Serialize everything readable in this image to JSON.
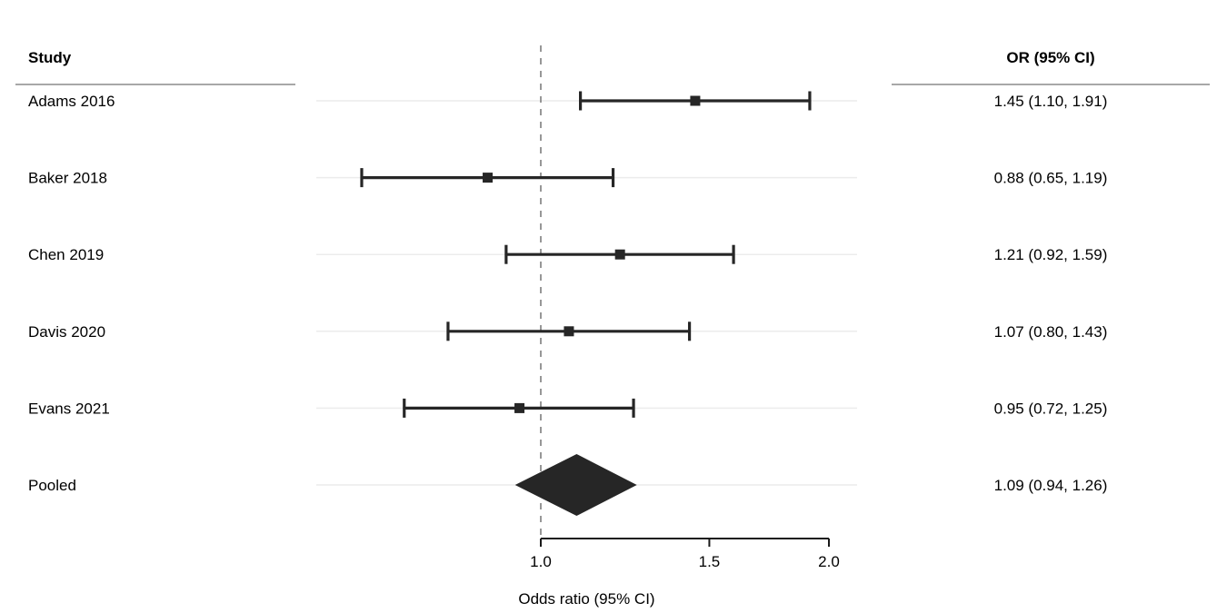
{
  "table": {
    "study_header": "Study",
    "or_header": "OR (95% CI)"
  },
  "chart_data": {
    "type": "forest",
    "x_scale": "log",
    "xlabel": "Odds ratio (95% CI)",
    "x_range": [
      1.0,
      2.0
    ],
    "x_ticks": [
      1.0,
      1.5,
      2.0
    ],
    "x_tick_labels": [
      "1.0",
      "1.5",
      "2.0"
    ],
    "reference_line": 1.0,
    "grid": true,
    "legend": "none",
    "rows": [
      {
        "study": "Adams 2016",
        "or": 1.45,
        "ci_low": 1.1,
        "ci_high": 1.91,
        "or_ci_text": "1.45 (1.10, 1.91)",
        "marker": "square"
      },
      {
        "study": "Baker 2018",
        "or": 0.88,
        "ci_low": 0.65,
        "ci_high": 1.19,
        "or_ci_text": "0.88 (0.65, 1.19)",
        "marker": "square"
      },
      {
        "study": "Chen 2019",
        "or": 1.21,
        "ci_low": 0.92,
        "ci_high": 1.59,
        "or_ci_text": "1.21 (0.92, 1.59)",
        "marker": "square"
      },
      {
        "study": "Davis 2020",
        "or": 1.07,
        "ci_low": 0.8,
        "ci_high": 1.43,
        "or_ci_text": "1.07 (0.80, 1.43)",
        "marker": "square"
      },
      {
        "study": "Evans 2021",
        "or": 0.95,
        "ci_low": 0.72,
        "ci_high": 1.25,
        "or_ci_text": "0.95 (0.72, 1.25)",
        "marker": "square"
      },
      {
        "study": "Pooled",
        "or": 1.09,
        "ci_low": 0.94,
        "ci_high": 1.26,
        "or_ci_text": "1.09 (0.94, 1.26)",
        "marker": "diamond"
      }
    ],
    "colors": {
      "marker": "#262626",
      "diamond": "#262626",
      "reference_line": "#8c8c8c",
      "gridline": "#ececec",
      "separator": "#a8a8a8",
      "axis": "#1a1a1a",
      "text": "#000000"
    }
  }
}
